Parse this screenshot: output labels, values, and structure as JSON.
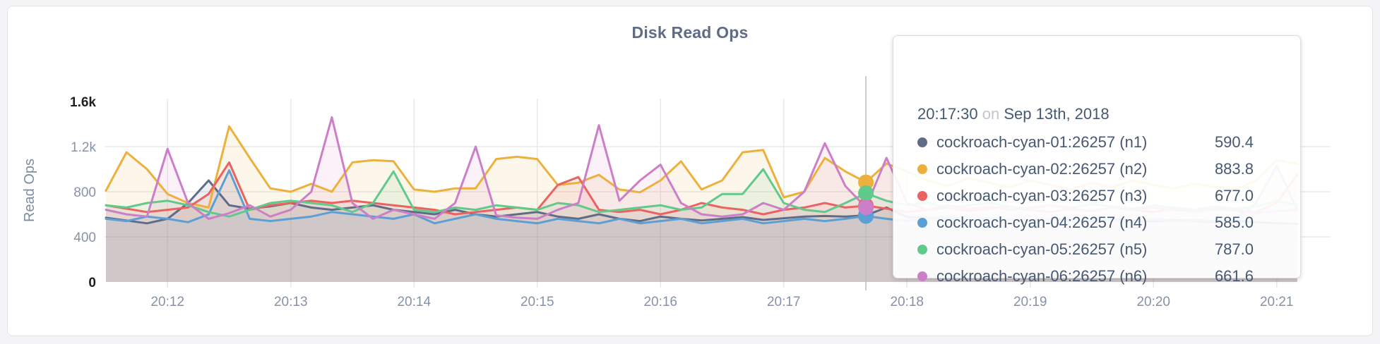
{
  "page_background": "#f4f4f6",
  "card": {
    "background": "#ffffff",
    "border_color": "#e3e4e6"
  },
  "chart_data": {
    "type": "area",
    "title": "Disk Read Ops",
    "ylabel": "Read Ops",
    "xlabel": "",
    "ylim": [
      0,
      1600
    ],
    "grid": true,
    "legend_position": "none",
    "x_start_time": "20:11:30",
    "x_step_seconds": 10,
    "x_ticks": [
      "20:12",
      "20:13",
      "20:14",
      "20:15",
      "20:16",
      "20:17",
      "20:18",
      "20:19",
      "20:20",
      "20:21"
    ],
    "y_ticks": [
      {
        "label": "1.6k",
        "value": 1600,
        "emphasized": true,
        "gridline": false
      },
      {
        "label": "1.2k",
        "value": 1200,
        "emphasized": false,
        "gridline": true
      },
      {
        "label": "800",
        "value": 800,
        "emphasized": false,
        "gridline": true
      },
      {
        "label": "400",
        "value": 400,
        "emphasized": false,
        "gridline": true
      },
      {
        "label": "0",
        "value": 0,
        "emphasized": true,
        "gridline": false
      }
    ],
    "series": [
      {
        "name": "cockroach-cyan-01:26257 (n1)",
        "node": "n1",
        "color": "#5f6c87",
        "values": [
          570,
          545,
          520,
          560,
          700,
          900,
          680,
          650,
          670,
          700,
          660,
          640,
          660,
          680,
          640,
          620,
          600,
          640,
          600,
          580,
          600,
          620,
          580,
          560,
          600,
          560,
          540,
          580,
          560,
          545,
          560,
          575,
          550,
          565,
          580,
          585,
          580,
          590.4,
          660,
          575,
          570,
          560,
          550,
          565,
          555,
          545,
          560,
          550,
          540,
          555,
          545,
          535,
          550,
          540,
          530,
          545,
          530,
          520,
          515
        ]
      },
      {
        "name": "cockroach-cyan-02:26257 (n2)",
        "node": "n2",
        "color": "#ecb13c",
        "values": [
          810,
          1150,
          1000,
          780,
          700,
          660,
          1380,
          1100,
          830,
          800,
          870,
          800,
          1060,
          1080,
          1070,
          820,
          800,
          830,
          830,
          1090,
          1110,
          1090,
          860,
          880,
          950,
          820,
          795,
          900,
          1070,
          820,
          900,
          1150,
          1170,
          750,
          800,
          1100,
          980,
          883.8,
          1050,
          980,
          900,
          850,
          920,
          880,
          840,
          900,
          860,
          820,
          880,
          840,
          900,
          860,
          830,
          870,
          840,
          820,
          900,
          1080,
          1050
        ]
      },
      {
        "name": "cockroach-cyan-03:26257 (n3)",
        "node": "n3",
        "color": "#ea6360",
        "values": [
          680,
          650,
          620,
          640,
          660,
          780,
          1060,
          640,
          680,
          700,
          720,
          700,
          720,
          700,
          680,
          660,
          640,
          600,
          620,
          640,
          660,
          640,
          860,
          930,
          640,
          620,
          640,
          600,
          640,
          700,
          660,
          640,
          600,
          640,
          660,
          700,
          660,
          677,
          650,
          620,
          640,
          660,
          630,
          650,
          670,
          640,
          620,
          650,
          630,
          660,
          640,
          620,
          650,
          630,
          650,
          640,
          620,
          700,
          950
        ]
      },
      {
        "name": "cockroach-cyan-04:26257 (n4)",
        "node": "n4",
        "color": "#5b9fd4",
        "values": [
          560,
          540,
          580,
          560,
          530,
          600,
          990,
          560,
          540,
          560,
          580,
          620,
          600,
          580,
          560,
          600,
          520,
          560,
          600,
          560,
          540,
          520,
          560,
          540,
          520,
          560,
          520,
          540,
          560,
          520,
          540,
          560,
          520,
          540,
          560,
          540,
          560,
          585,
          560,
          540,
          560,
          580,
          550,
          570,
          550,
          530,
          560,
          540,
          560,
          550,
          530,
          560,
          540,
          550,
          540,
          560,
          700,
          1030,
          640
        ]
      },
      {
        "name": "cockroach-cyan-05:26257 (n5)",
        "node": "n5",
        "color": "#62c98c",
        "values": [
          680,
          660,
          700,
          720,
          680,
          620,
          580,
          640,
          700,
          720,
          700,
          680,
          620,
          700,
          980,
          640,
          620,
          660,
          640,
          680,
          660,
          640,
          700,
          680,
          620,
          640,
          660,
          680,
          640,
          660,
          780,
          780,
          1000,
          700,
          640,
          620,
          700,
          787,
          720,
          680,
          700,
          660,
          680,
          700,
          670,
          650,
          680,
          660,
          690,
          670,
          650,
          680,
          660,
          640,
          670,
          650,
          670,
          720,
          680
        ]
      },
      {
        "name": "cockroach-cyan-06:26257 (n6)",
        "node": "n6",
        "color": "#cd7ec8",
        "values": [
          640,
          600,
          580,
          1180,
          700,
          560,
          610,
          680,
          580,
          640,
          800,
          1460,
          700,
          560,
          640,
          600,
          560,
          700,
          1200,
          590,
          570,
          560,
          640,
          700,
          1390,
          720,
          900,
          1040,
          700,
          600,
          580,
          600,
          700,
          640,
          800,
          1230,
          850,
          661.6,
          1100,
          700,
          640,
          680,
          650,
          670,
          640,
          660,
          680,
          650,
          630,
          660,
          640,
          660,
          640,
          620,
          650,
          630,
          610,
          630,
          640
        ]
      }
    ],
    "hover": {
      "index": 37,
      "time": "20:17:30",
      "date": "Sep 13th, 2018"
    }
  },
  "tooltip": {
    "time": "20:17:30",
    "preposition": "on",
    "date": "Sep 13th, 2018",
    "rows": [
      {
        "label": "cockroach-cyan-01:26257 (n1)",
        "value": "590.4",
        "color": "#5f6c87"
      },
      {
        "label": "cockroach-cyan-02:26257 (n2)",
        "value": "883.8",
        "color": "#ecb13c"
      },
      {
        "label": "cockroach-cyan-03:26257 (n3)",
        "value": "677.0",
        "color": "#ea6360"
      },
      {
        "label": "cockroach-cyan-04:26257 (n4)",
        "value": "585.0",
        "color": "#5b9fd4"
      },
      {
        "label": "cockroach-cyan-05:26257 (n5)",
        "value": "787.0",
        "color": "#62c98c"
      },
      {
        "label": "cockroach-cyan-06:26257 (n6)",
        "value": "661.6",
        "color": "#cd7ec8"
      }
    ]
  },
  "style": {
    "axis_label_color": "#8593a9",
    "axis_label_emphasized_color": "#1f1f1f",
    "axis_title_color": "#7e8ca3",
    "gridline_color": "#e9e9e9",
    "hover_line_color": "#bcbcbc",
    "area_fill_opacity": 0.11
  }
}
